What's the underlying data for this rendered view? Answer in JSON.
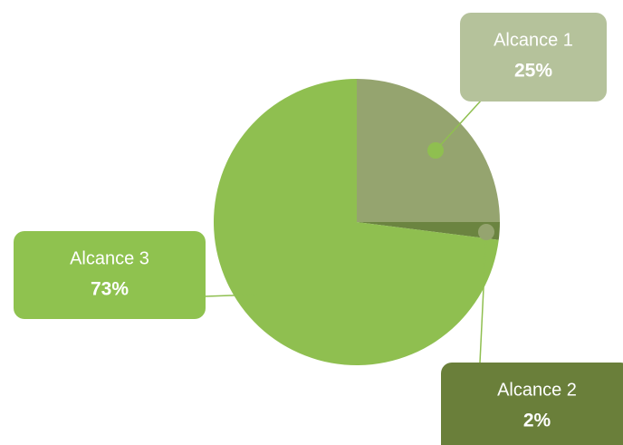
{
  "chart_data": {
    "type": "pie",
    "categories": [
      "Alcance 1",
      "Alcance 2",
      "Alcance 3"
    ],
    "values": [
      25,
      2,
      73
    ],
    "value_labels": [
      "25%",
      "2%",
      "73%"
    ],
    "colors": [
      "#95a46f",
      "#6b8440",
      "#8fbf50"
    ]
  }
}
